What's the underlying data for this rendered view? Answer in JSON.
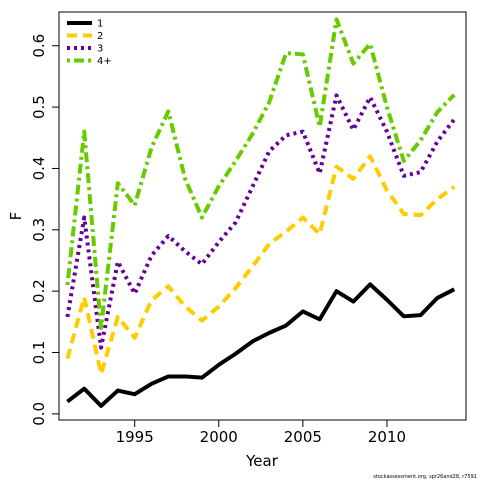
{
  "chart_data": {
    "type": "line",
    "xlabel": "Year",
    "ylabel": "F",
    "xlim": [
      1990.5,
      2014.7
    ],
    "ylim": [
      -0.01,
      0.655
    ],
    "x_ticks": [
      1995,
      2000,
      2005,
      2010
    ],
    "y_ticks": [
      0.0,
      0.1,
      0.2,
      0.3,
      0.4,
      0.5,
      0.6
    ],
    "y_tick_labels": [
      "0.0",
      "0.1",
      "0.2",
      "0.3",
      "0.4",
      "0.5",
      "0.6"
    ],
    "x": [
      1991,
      1992,
      1993,
      1994,
      1995,
      1996,
      1997,
      1998,
      1999,
      2000,
      2001,
      2002,
      2003,
      2004,
      2005,
      2006,
      2007,
      2008,
      2009,
      2010,
      2011,
      2012,
      2013,
      2014
    ],
    "legend_position": "top-left",
    "series": [
      {
        "name": "1",
        "color": "#000000",
        "style": "solid",
        "values": [
          0.02,
          0.041,
          0.013,
          0.038,
          0.032,
          0.049,
          0.061,
          0.061,
          0.059,
          0.08,
          0.098,
          0.118,
          0.132,
          0.144,
          0.167,
          0.154,
          0.2,
          0.183,
          0.211,
          0.186,
          0.159,
          0.161,
          0.189,
          0.203
        ]
      },
      {
        "name": "2",
        "color": "#FFCC00",
        "style": "dashed",
        "values": [
          0.09,
          0.19,
          0.065,
          0.158,
          0.124,
          0.185,
          0.208,
          0.175,
          0.152,
          0.175,
          0.205,
          0.24,
          0.277,
          0.297,
          0.32,
          0.293,
          0.403,
          0.383,
          0.42,
          0.364,
          0.326,
          0.324,
          0.35,
          0.37
        ]
      },
      {
        "name": "3",
        "color": "#660099",
        "style": "dotted",
        "values": [
          0.158,
          0.32,
          0.108,
          0.248,
          0.196,
          0.258,
          0.29,
          0.265,
          0.244,
          0.28,
          0.312,
          0.37,
          0.428,
          0.454,
          0.46,
          0.392,
          0.519,
          0.463,
          0.516,
          0.46,
          0.388,
          0.394,
          0.444,
          0.48
        ]
      },
      {
        "name": "4+",
        "color": "#66CC00",
        "style": "dashdot",
        "values": [
          0.21,
          0.46,
          0.14,
          0.376,
          0.34,
          0.434,
          0.493,
          0.383,
          0.32,
          0.371,
          0.412,
          0.456,
          0.508,
          0.588,
          0.586,
          0.468,
          0.643,
          0.571,
          0.603,
          0.5,
          0.412,
          0.446,
          0.492,
          0.52
        ]
      }
    ],
    "footer": "stockassessment.org, spr26and28, r7591"
  }
}
